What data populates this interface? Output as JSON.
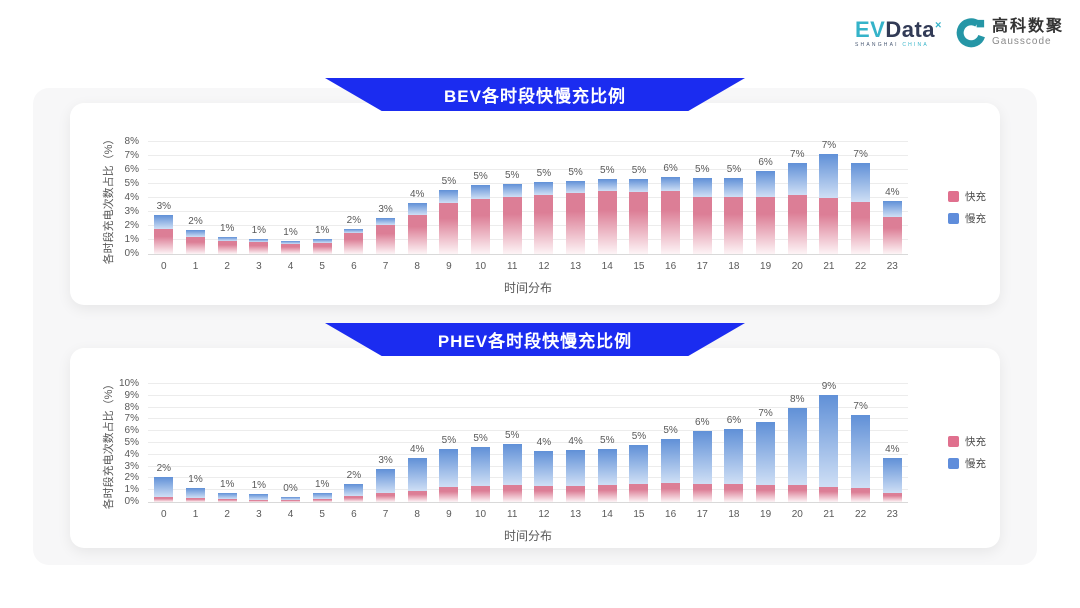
{
  "header": {
    "evdata": {
      "part1": "EV",
      "part2": "Data",
      "sup": "×",
      "sub1": "SHANGHAI",
      "sub2": "CHINA"
    },
    "gausscode": {
      "name_cn": "高科数聚",
      "name_en": "Gausscode"
    }
  },
  "colors": {
    "banner_blue": "#1b2cf0",
    "fast_top": "#dc7e96",
    "fast_fade": "#fdf4f6",
    "slow_top": "#6090d7",
    "slow_fade": "#cfdff5",
    "fast_legend": "#e0708e",
    "slow_legend": "#5f8ddb",
    "evdata_teal": "#35b3c9",
    "evdata_navy": "#323b56",
    "gauss_teal": "#2596a6"
  },
  "chart_data": [
    {
      "type": "bar",
      "stacked": true,
      "title": "BEV各时段快慢充比例",
      "xlabel": "时间分布",
      "ylabel": "各时段充电次数占比（%）",
      "ylim": [
        0,
        8
      ],
      "ytick_step": 1,
      "grid": true,
      "legend_position": "right",
      "categories": [
        "0",
        "1",
        "2",
        "3",
        "4",
        "5",
        "6",
        "7",
        "8",
        "9",
        "10",
        "11",
        "12",
        "13",
        "14",
        "15",
        "16",
        "17",
        "18",
        "19",
        "20",
        "21",
        "22",
        "23"
      ],
      "series": [
        {
          "name": "快充",
          "values": [
            1.8,
            1.2,
            0.95,
            0.85,
            0.75,
            0.8,
            1.5,
            2.1,
            2.8,
            3.65,
            3.95,
            4.05,
            4.25,
            4.35,
            4.5,
            4.45,
            4.5,
            4.1,
            4.05,
            4.05,
            4.2,
            4.0,
            3.7,
            2.65
          ]
        },
        {
          "name": "慢充",
          "values": [
            1.0,
            0.55,
            0.3,
            0.25,
            0.15,
            0.25,
            0.3,
            0.45,
            0.85,
            0.9,
            0.95,
            0.95,
            0.9,
            0.9,
            0.85,
            0.9,
            1.0,
            1.3,
            1.35,
            1.85,
            2.3,
            3.15,
            2.8,
            1.15
          ]
        }
      ],
      "total_labels": [
        "3%",
        "2%",
        "1%",
        "1%",
        "1%",
        "1%",
        "2%",
        "3%",
        "4%",
        "5%",
        "5%",
        "5%",
        "5%",
        "5%",
        "5%",
        "5%",
        "6%",
        "5%",
        "5%",
        "6%",
        "7%",
        "7%",
        "7%",
        "4%"
      ]
    },
    {
      "type": "bar",
      "stacked": true,
      "title": "PHEV各时段快慢充比例",
      "xlabel": "时间分布",
      "ylabel": "各时段充电次数占比（%）",
      "ylim": [
        0,
        10
      ],
      "ytick_step": 1,
      "grid": true,
      "legend_position": "right",
      "categories": [
        "0",
        "1",
        "2",
        "3",
        "4",
        "5",
        "6",
        "7",
        "8",
        "9",
        "10",
        "11",
        "12",
        "13",
        "14",
        "15",
        "16",
        "17",
        "18",
        "19",
        "20",
        "21",
        "22",
        "23"
      ],
      "series": [
        {
          "name": "快充",
          "values": [
            0.45,
            0.3,
            0.25,
            0.2,
            0.15,
            0.25,
            0.55,
            0.75,
            0.95,
            1.3,
            1.35,
            1.45,
            1.35,
            1.35,
            1.4,
            1.5,
            1.6,
            1.55,
            1.55,
            1.45,
            1.4,
            1.3,
            1.15,
            0.8
          ]
        },
        {
          "name": "慢充",
          "values": [
            1.7,
            0.9,
            0.55,
            0.45,
            0.3,
            0.5,
            0.95,
            2.05,
            2.8,
            3.2,
            3.35,
            3.45,
            3.0,
            3.05,
            3.1,
            3.35,
            3.7,
            4.45,
            4.65,
            5.35,
            6.6,
            7.75,
            6.2,
            2.95
          ]
        }
      ],
      "total_labels": [
        "2%",
        "1%",
        "1%",
        "1%",
        "0%",
        "1%",
        "2%",
        "3%",
        "4%",
        "5%",
        "5%",
        "5%",
        "4%",
        "4%",
        "5%",
        "5%",
        "5%",
        "6%",
        "6%",
        "7%",
        "8%",
        "9%",
        "7%",
        "4%"
      ]
    }
  ]
}
